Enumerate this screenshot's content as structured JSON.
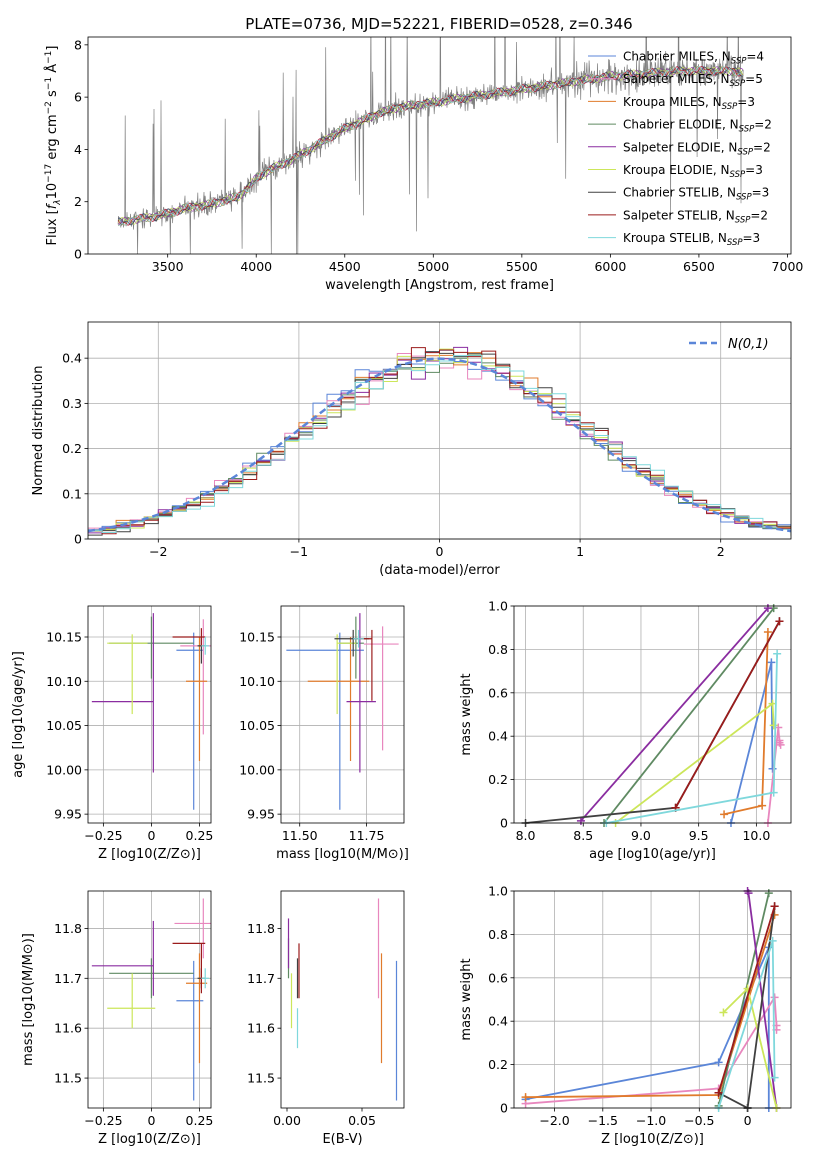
{
  "figure": {
    "title": "PLATE=0736, MJD=52221, FIBERID=0528, z=0.346"
  },
  "chart_data": [
    {
      "id": "spectrum",
      "type": "line",
      "xlabel": "wavelength [Angstrom, rest frame]",
      "ylabel": "Flux [f_λ 10^-17 erg cm^-2 s^-1 Å^-1]",
      "xlim": [
        3050,
        7020
      ],
      "ylim": [
        0,
        8.3
      ],
      "xticks": [
        3500,
        4000,
        4500,
        5000,
        5500,
        6000,
        6500,
        7000
      ],
      "yticks": [
        0,
        2,
        4,
        6,
        8
      ],
      "grid": false,
      "legend_position": "top-right",
      "legend": [
        {
          "label": "Chabrier MILES, N",
          "sub": "SSP",
          "suffix": "=4",
          "color": "#5b86d8"
        },
        {
          "label": "Salpeter MILES, N",
          "sub": "SSP",
          "suffix": "=5",
          "color": "#e887be"
        },
        {
          "label": "Kroupa MILES, N",
          "sub": "SSP",
          "suffix": "=3",
          "color": "#e07b2c"
        },
        {
          "label": "Chabrier ELODIE, N",
          "sub": "SSP",
          "suffix": "=2",
          "color": "#5f8a62"
        },
        {
          "label": "Salpeter ELODIE, N",
          "sub": "SSP",
          "suffix": "=2",
          "color": "#8a2da0"
        },
        {
          "label": "Kroupa ELODIE, N",
          "sub": "SSP",
          "suffix": "=3",
          "color": "#cce65a"
        },
        {
          "label": "Chabrier STELIB, N",
          "sub": "SSP",
          "suffix": "=3",
          "color": "#404040"
        },
        {
          "label": "Salpeter STELIB, N",
          "sub": "SSP",
          "suffix": "=2",
          "color": "#9b1c1c"
        },
        {
          "label": "Kroupa STELIB, N",
          "sub": "SSP",
          "suffix": "=3",
          "color": "#7fd8dc"
        }
      ],
      "data_color": "#808080",
      "continuum": {
        "x": [
          3220,
          3300,
          3400,
          3500,
          3600,
          3700,
          3800,
          3900,
          3950,
          4000,
          4100,
          4200,
          4300,
          4400,
          4500,
          4600,
          4700,
          4800,
          4900,
          5000,
          5200,
          5400,
          5600,
          5800,
          6000,
          6200,
          6400,
          6600,
          6700,
          6750
        ],
        "y": [
          1.2,
          1.3,
          1.4,
          1.55,
          1.75,
          1.85,
          2.0,
          2.2,
          2.5,
          2.9,
          3.3,
          3.6,
          4.0,
          4.4,
          4.8,
          5.1,
          5.4,
          5.6,
          5.7,
          5.8,
          6.0,
          6.2,
          6.4,
          6.6,
          6.8,
          6.9,
          7.0,
          7.0,
          7.0,
          6.9
        ]
      }
    },
    {
      "id": "residuals",
      "type": "histogram",
      "xlabel": "(data-model)/error",
      "ylabel": "Normed distribution",
      "xlim": [
        -2.5,
        2.5
      ],
      "ylim": [
        0,
        0.48
      ],
      "xticks": [
        -2,
        -1,
        0,
        1,
        2
      ],
      "yticks": [
        0.0,
        0.1,
        0.2,
        0.3,
        0.4
      ],
      "grid": true,
      "legend_position": "top-right",
      "legend_label": "N(0,1)",
      "reference_color": "#5b86d8",
      "bin_width": 0.1
    },
    {
      "id": "age-vs-Z",
      "type": "errorbar",
      "xlabel": "Z [log10(Z/Z⊙)]",
      "ylabel": "age [log10(age/yr)]",
      "xlim": [
        -0.33,
        0.31
      ],
      "ylim": [
        9.94,
        10.185
      ],
      "xticks": [
        -0.25,
        0.0,
        0.25
      ],
      "yticks": [
        9.95,
        10.0,
        10.05,
        10.1,
        10.15
      ],
      "grid": true,
      "points": [
        {
          "x": 0.22,
          "xerr": [
            0.09,
            0.05
          ],
          "y": 10.135,
          "yerr": [
            0.18,
            0.02
          ],
          "color": "#5b86d8"
        },
        {
          "x": 0.27,
          "xerr": [
            0.12,
            0.04
          ],
          "y": 10.14,
          "yerr": [
            0.1,
            0.03
          ],
          "color": "#e887be"
        },
        {
          "x": 0.25,
          "xerr": [
            0.07,
            0.04
          ],
          "y": 10.1,
          "yerr": [
            0.09,
            0.05
          ],
          "color": "#e07b2c"
        },
        {
          "x": 0.0,
          "xerr": [
            0.22,
            0.22
          ],
          "y": 10.143,
          "yerr": [
            0.04,
            0.03
          ],
          "color": "#5f8a62"
        },
        {
          "x": 0.01,
          "xerr": [
            0.32,
            0.0
          ],
          "y": 10.077,
          "yerr": [
            0.08,
            0.1
          ],
          "color": "#8a2da0"
        },
        {
          "x": -0.1,
          "xerr": [
            0.13,
            0.08
          ],
          "y": 10.143,
          "yerr": [
            0.08,
            0.01
          ],
          "color": "#cce65a"
        },
        {
          "x": 0.26,
          "xerr": [
            0.02,
            0.02
          ],
          "y": 10.14,
          "yerr": [
            0.02,
            0.01
          ],
          "color": "#404040"
        },
        {
          "x": 0.26,
          "xerr": [
            0.15,
            0.02
          ],
          "y": 10.15,
          "yerr": [
            0.01,
            0.01
          ],
          "color": "#9b1c1c"
        },
        {
          "x": 0.28,
          "xerr": [
            0.02,
            0.02
          ],
          "y": 10.14,
          "yerr": [
            0.01,
            0.01
          ],
          "color": "#7fd8dc"
        }
      ]
    },
    {
      "id": "age-vs-mass",
      "type": "errorbar",
      "xlabel": "mass [log10(M/M⊙)]",
      "ylabel": "",
      "xlim": [
        11.43,
        11.89
      ],
      "ylim": [
        9.94,
        10.185
      ],
      "xticks": [
        11.5,
        11.75
      ],
      "xticklabels": [
        "11.50",
        "11.75"
      ],
      "yticks": [
        9.95,
        10.0,
        10.05,
        10.1,
        10.15
      ],
      "grid": true,
      "points": [
        {
          "x": 11.65,
          "xerr": [
            0.2,
            0.09
          ],
          "y": 10.135,
          "yerr": [
            0.18,
            0.02
          ],
          "color": "#5b86d8"
        },
        {
          "x": 11.81,
          "xerr": [
            0.07,
            0.06
          ],
          "y": 10.142,
          "yerr": [
            0.12,
            0.02
          ],
          "color": "#e887be"
        },
        {
          "x": 11.69,
          "xerr": [
            0.16,
            0.07
          ],
          "y": 10.1,
          "yerr": [
            0.09,
            0.05
          ],
          "color": "#e07b2c"
        },
        {
          "x": 11.71,
          "xerr": [
            0.06,
            0.03
          ],
          "y": 10.143,
          "yerr": [
            0.04,
            0.03
          ],
          "color": "#5f8a62"
        },
        {
          "x": 11.725,
          "xerr": [
            0.05,
            0.06
          ],
          "y": 10.077,
          "yerr": [
            0.08,
            0.1
          ],
          "color": "#8a2da0"
        },
        {
          "x": 11.64,
          "xerr": [
            0.0,
            0.07
          ],
          "y": 10.143,
          "yerr": [
            0.08,
            0.01
          ],
          "color": "#cce65a"
        },
        {
          "x": 11.7,
          "xerr": [
            0.07,
            0.06
          ],
          "y": 10.148,
          "yerr": [
            0.02,
            0.01
          ],
          "color": "#404040"
        },
        {
          "x": 11.77,
          "xerr": [
            0.06,
            0.0
          ],
          "y": 10.148,
          "yerr": [
            0.07,
            0.01
          ],
          "color": "#9b1c1c"
        },
        {
          "x": 11.72,
          "xerr": [
            0.02,
            0.02
          ],
          "y": 10.148,
          "yerr": [
            0.01,
            0.01
          ],
          "color": "#7fd8dc"
        }
      ]
    },
    {
      "id": "weight-vs-age",
      "type": "line",
      "xlabel": "age [log10(age/yr)]",
      "ylabel": "mass weight",
      "xlim": [
        7.9,
        10.3
      ],
      "ylim": [
        0,
        1
      ],
      "xticks": [
        8.0,
        8.5,
        9.0,
        9.5,
        10.0
      ],
      "yticks": [
        0.0,
        0.2,
        0.4,
        0.6,
        0.8,
        1.0
      ],
      "grid": true,
      "series": [
        {
          "color": "#5b86d8",
          "x": [
            9.78,
            10.13,
            10.14
          ],
          "y": [
            0.0,
            0.74,
            0.25
          ]
        },
        {
          "color": "#e887be",
          "x": [
            10.1,
            10.19,
            10.2,
            10.2,
            10.21
          ],
          "y": [
            0.0,
            0.44,
            0.37,
            0.38,
            0.36
          ]
        },
        {
          "color": "#e07b2c",
          "x": [
            9.72,
            10.05,
            10.1
          ],
          "y": [
            0.04,
            0.08,
            0.88
          ]
        },
        {
          "color": "#5f8a62",
          "x": [
            8.68,
            10.15
          ],
          "y": [
            0.0,
            0.99
          ]
        },
        {
          "color": "#8a2da0",
          "x": [
            8.48,
            10.1
          ],
          "y": [
            0.01,
            0.99
          ]
        },
        {
          "color": "#cce65a",
          "x": [
            8.78,
            10.14,
            10.15
          ],
          "y": [
            0.0,
            0.55,
            0.45
          ]
        },
        {
          "color": "#404040",
          "x": [
            8.0,
            9.3,
            10.2
          ],
          "y": [
            0.0,
            0.07,
            0.93
          ]
        },
        {
          "color": "#9b1c1c",
          "x": [
            9.3,
            10.2
          ],
          "y": [
            0.07,
            0.93
          ]
        },
        {
          "color": "#7fd8dc",
          "x": [
            8.7,
            10.15,
            10.18
          ],
          "y": [
            0.0,
            0.14,
            0.78
          ]
        }
      ]
    },
    {
      "id": "mass-vs-Z",
      "type": "errorbar",
      "xlabel": "Z [log10(Z/Z⊙)]",
      "ylabel": "mass [log10(M/M⊙)]",
      "xlim": [
        -0.33,
        0.31
      ],
      "ylim": [
        11.44,
        11.875
      ],
      "xticks": [
        -0.25,
        0.0,
        0.25
      ],
      "yticks": [
        11.5,
        11.6,
        11.7,
        11.8
      ],
      "grid": true,
      "points": [
        {
          "x": 0.22,
          "xerr": [
            0.09,
            0.05
          ],
          "y": 11.655,
          "yerr": [
            0.2,
            0.08
          ],
          "color": "#5b86d8"
        },
        {
          "x": 0.27,
          "xerr": [
            0.15,
            0.04
          ],
          "y": 11.81,
          "yerr": [
            0.07,
            0.05
          ],
          "color": "#e887be"
        },
        {
          "x": 0.25,
          "xerr": [
            0.07,
            0.04
          ],
          "y": 11.69,
          "yerr": [
            0.16,
            0.06
          ],
          "color": "#e07b2c"
        },
        {
          "x": 0.0,
          "xerr": [
            0.22,
            0.22
          ],
          "y": 11.71,
          "yerr": [
            0.05,
            0.03
          ],
          "color": "#5f8a62"
        },
        {
          "x": 0.01,
          "xerr": [
            0.32,
            0.0
          ],
          "y": 11.725,
          "yerr": [
            0.06,
            0.09
          ],
          "color": "#8a2da0"
        },
        {
          "x": -0.1,
          "xerr": [
            0.13,
            0.12
          ],
          "y": 11.64,
          "yerr": [
            0.04,
            0.07
          ],
          "color": "#cce65a"
        },
        {
          "x": 0.26,
          "xerr": [
            0.02,
            0.02
          ],
          "y": 11.7,
          "yerr": [
            0.02,
            0.02
          ],
          "color": "#404040"
        },
        {
          "x": 0.26,
          "xerr": [
            0.15,
            0.02
          ],
          "y": 11.77,
          "yerr": [
            0.1,
            0.0
          ],
          "color": "#9b1c1c"
        },
        {
          "x": 0.28,
          "xerr": [
            0.02,
            0.02
          ],
          "y": 11.7,
          "yerr": [
            0.02,
            0.02
          ],
          "color": "#7fd8dc"
        }
      ]
    },
    {
      "id": "mass-vs-EBV",
      "type": "errorbar",
      "xlabel": "E(B-V)",
      "ylabel": "",
      "xlim": [
        -0.004,
        0.078
      ],
      "ylim": [
        11.44,
        11.875
      ],
      "xticks": [
        0.0,
        0.05
      ],
      "xticklabels": [
        "0.00",
        "0.05"
      ],
      "yticks": [
        11.5,
        11.6,
        11.7,
        11.8
      ],
      "grid": false,
      "points": [
        {
          "x": 0.073,
          "xerr": [
            0,
            0
          ],
          "y": 11.655,
          "yerr": [
            0.2,
            0.08
          ],
          "color": "#5b86d8"
        },
        {
          "x": 0.061,
          "xerr": [
            0,
            0
          ],
          "y": 11.76,
          "yerr": [
            0.1,
            0.1
          ],
          "color": "#e887be"
        },
        {
          "x": 0.063,
          "xerr": [
            0,
            0
          ],
          "y": 11.64,
          "yerr": [
            0.11,
            0.11
          ],
          "color": "#e07b2c"
        },
        {
          "x": 0.001,
          "xerr": [
            0,
            0
          ],
          "y": 11.75,
          "yerr": [
            0.05,
            0.03
          ],
          "color": "#5f8a62"
        },
        {
          "x": 0.001,
          "xerr": [
            0,
            0
          ],
          "y": 11.77,
          "yerr": [
            0.05,
            0.05
          ],
          "color": "#8a2da0"
        },
        {
          "x": 0.003,
          "xerr": [
            0,
            0
          ],
          "y": 11.64,
          "yerr": [
            0.04,
            0.07
          ],
          "color": "#cce65a"
        },
        {
          "x": 0.007,
          "xerr": [
            0,
            0
          ],
          "y": 11.7,
          "yerr": [
            0.04,
            0.04
          ],
          "color": "#404040"
        },
        {
          "x": 0.008,
          "xerr": [
            0,
            0
          ],
          "y": 11.72,
          "yerr": [
            0.06,
            0.05
          ],
          "color": "#9b1c1c"
        },
        {
          "x": 0.007,
          "xerr": [
            0,
            0
          ],
          "y": 11.6,
          "yerr": [
            0.04,
            0.04
          ],
          "color": "#7fd8dc"
        }
      ]
    },
    {
      "id": "weight-vs-Z",
      "type": "line",
      "xlabel": "Z [log10(Z/Z⊙)]",
      "ylabel": "mass weight",
      "xlim": [
        -2.42,
        0.45
      ],
      "ylim": [
        0,
        1
      ],
      "xticks": [
        -2.0,
        -1.5,
        -1.0,
        -0.5,
        0.0
      ],
      "yticks": [
        0.0,
        0.2,
        0.4,
        0.6,
        0.8,
        1.0
      ],
      "grid": true,
      "series": [
        {
          "color": "#5b86d8",
          "x": [
            -2.3,
            -0.3,
            0.22,
            0.22
          ],
          "y": [
            0.04,
            0.21,
            0.74,
            0.0
          ]
        },
        {
          "color": "#e887be",
          "x": [
            -2.3,
            -0.3,
            0.28,
            0.3,
            0.3
          ],
          "y": [
            0.02,
            0.09,
            0.51,
            0.38,
            0.36
          ]
        },
        {
          "color": "#e07b2c",
          "x": [
            -2.3,
            -0.3,
            0.28
          ],
          "y": [
            0.05,
            0.06,
            0.89
          ]
        },
        {
          "color": "#5f8a62",
          "x": [
            -0.3,
            0.22
          ],
          "y": [
            0.01,
            0.99
          ]
        },
        {
          "color": "#8a2da0",
          "x": [
            0.0,
            0.01,
            0.3
          ],
          "y": [
            1.0,
            0.99,
            0.0
          ]
        },
        {
          "color": "#cce65a",
          "x": [
            -0.25,
            0.0,
            0.3
          ],
          "y": [
            0.44,
            0.55,
            0.0
          ]
        },
        {
          "color": "#404040",
          "x": [
            0.0,
            -0.3,
            0.0,
            0.28
          ],
          "y": [
            0.0,
            0.07,
            0.0,
            0.93
          ]
        },
        {
          "color": "#9b1c1c",
          "x": [
            -0.3,
            0.28
          ],
          "y": [
            0.07,
            0.93
          ]
        },
        {
          "color": "#7fd8dc",
          "x": [
            -0.3,
            0.26,
            0.28
          ],
          "y": [
            0.0,
            0.77,
            0.14
          ]
        }
      ]
    }
  ]
}
